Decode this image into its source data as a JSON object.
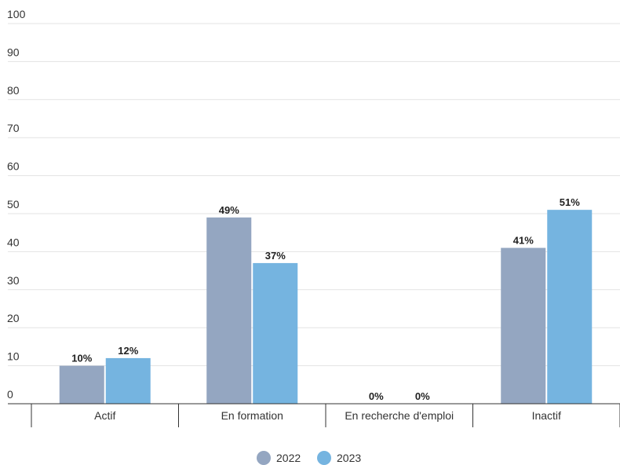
{
  "chart_data": {
    "type": "bar",
    "categories": [
      "Actif",
      "En formation",
      "En recherche d'emploi",
      "Inactif"
    ],
    "series": [
      {
        "name": "2022",
        "values": [
          10,
          49,
          0,
          41
        ],
        "labels": [
          "10%",
          "49%",
          "0%",
          "41%"
        ],
        "color": "#94a6c1"
      },
      {
        "name": "2023",
        "values": [
          12,
          37,
          0,
          51
        ],
        "labels": [
          "12%",
          "37%",
          "0%",
          "51%"
        ],
        "color": "#75b4e0"
      }
    ],
    "yticks": [
      "0",
      "10",
      "20",
      "30",
      "40",
      "50",
      "60",
      "70",
      "80",
      "90",
      "100"
    ],
    "ylim": [
      0,
      100
    ],
    "grid": true,
    "legend_position": "bottom-center"
  }
}
